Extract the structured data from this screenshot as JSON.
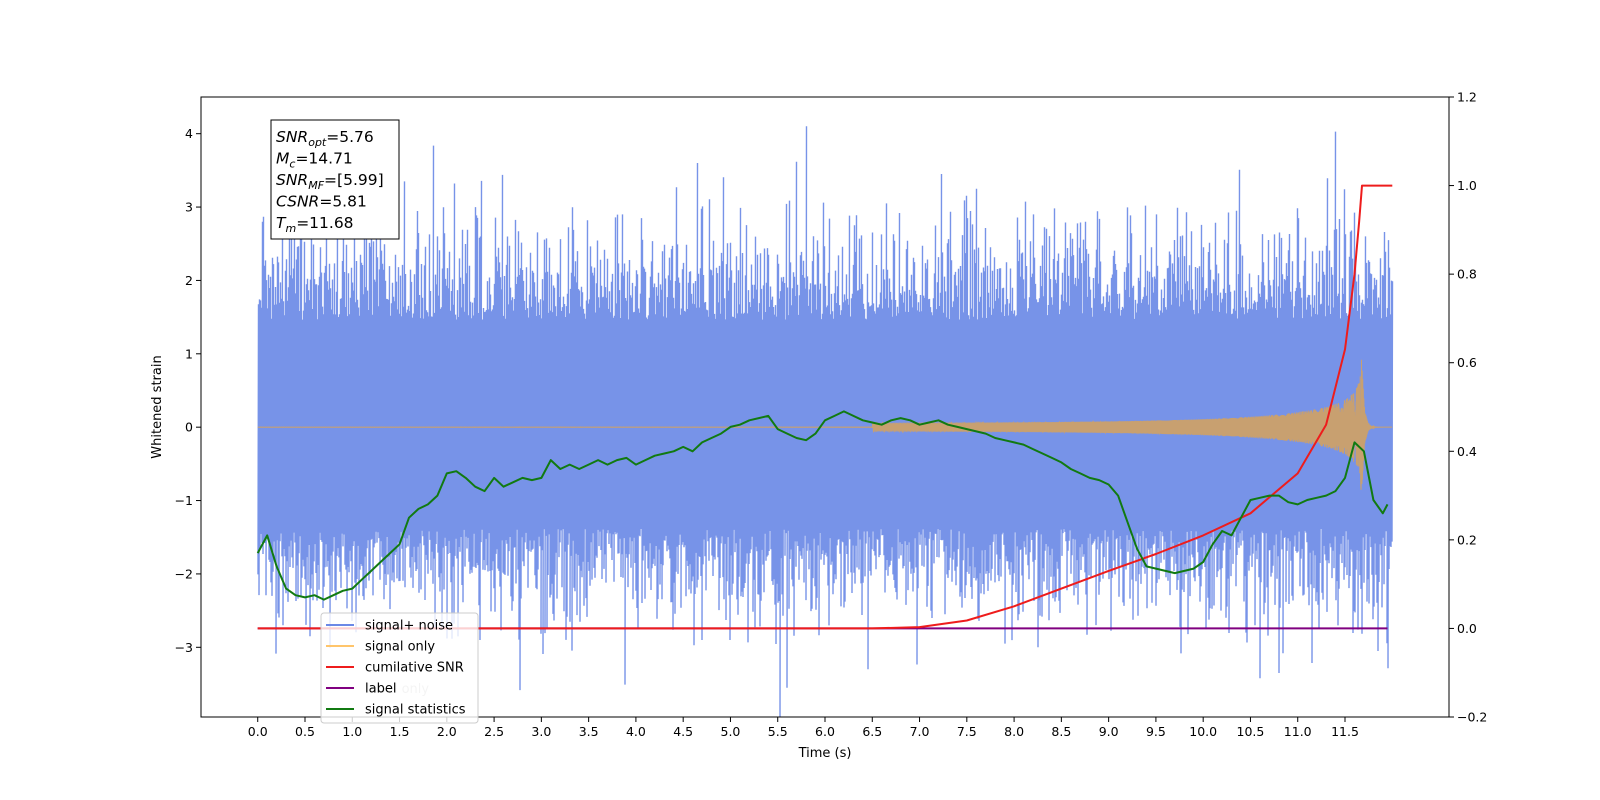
{
  "chart_data": {
    "type": "line",
    "xlabel": "Time (s)",
    "ylabel": "Whitened strain",
    "xlim": [
      -0.6,
      12.6
    ],
    "ylim": [
      -3.95,
      4.5
    ],
    "y2lim": [
      -0.2,
      1.2
    ],
    "x_ticks": [
      0.0,
      0.5,
      1.0,
      1.5,
      2.0,
      2.5,
      3.0,
      3.5,
      4.0,
      4.5,
      5.0,
      5.5,
      6.0,
      6.5,
      7.0,
      7.5,
      8.0,
      8.5,
      9.0,
      9.5,
      10.0,
      10.5,
      11.0,
      11.5
    ],
    "x_tick_labels": [
      "0.0",
      "0.5",
      "1.0",
      "1.5",
      "2.0",
      "2.5",
      "3.0",
      "3.5",
      "4.0",
      "4.5",
      "5.0",
      "5.5",
      "6.0",
      "6.5",
      "7.0",
      "7.5",
      "8.0",
      "8.5",
      "9.0",
      "9.5",
      "10.0",
      "10.5",
      "11.0",
      "11.5"
    ],
    "y_ticks": [
      -3,
      -2,
      -1,
      0,
      1,
      2,
      3,
      4
    ],
    "y_tick_labels": [
      "−3",
      "−2",
      "−1",
      "0",
      "1",
      "2",
      "3",
      "4"
    ],
    "y2_ticks": [
      -0.2,
      0.0,
      0.2,
      0.4,
      0.6,
      0.8,
      1.0,
      1.2
    ],
    "y2_tick_labels": [
      "−0.2",
      "0.0",
      "0.2",
      "0.4",
      "0.6",
      "0.8",
      "1.0",
      "1.2"
    ],
    "annotation": [
      {
        "base": "SNR",
        "sub": "opt",
        "value": "=5.76"
      },
      {
        "base": "M",
        "sub": "c",
        "value": "=14.71"
      },
      {
        "base": "SNR",
        "sub": "MF",
        "value": "=[5.99]"
      },
      {
        "base": "CSNR",
        "sub": "",
        "value": "=5.81"
      },
      {
        "base": "T",
        "sub": "m",
        "value": "=11.68"
      }
    ],
    "legend": {
      "location": "lower left",
      "entries": [
        {
          "label": "signal+ noise",
          "color": "#6b89e6"
        },
        {
          "label": "signal only",
          "color": "#ffc56b"
        },
        {
          "label": "cumilative SNR",
          "color": "#ee1c1c"
        },
        {
          "label": "label",
          "color": "#800080"
        },
        {
          "label": "signal statistics",
          "color": "#117a11"
        }
      ],
      "hidden_label": "label only"
    },
    "series": [
      {
        "name": "signal+ noise",
        "axis": "left",
        "color": "#7793e8",
        "x_range": [
          0.0,
          12.0
        ],
        "band": [
          -1.85,
          1.95
        ],
        "spikes": [
          {
            "x": 0.05,
            "y": 2.8
          },
          {
            "x": 0.15,
            "y": -2.3
          },
          {
            "x": 0.35,
            "y": 2.6
          },
          {
            "x": 0.55,
            "y": -2.85
          },
          {
            "x": 0.9,
            "y": 2.9
          },
          {
            "x": 1.15,
            "y": 3.1
          },
          {
            "x": 1.25,
            "y": 3.1
          },
          {
            "x": 1.55,
            "y": 3.35
          },
          {
            "x": 1.9,
            "y": 2.6
          },
          {
            "x": 2.3,
            "y": 3.0
          },
          {
            "x": 2.35,
            "y": -2.9
          },
          {
            "x": 3.85,
            "y": 2.9
          },
          {
            "x": 4.05,
            "y": 2.85
          },
          {
            "x": 4.65,
            "y": 3.6
          },
          {
            "x": 4.7,
            "y": -2.9
          },
          {
            "x": 5.0,
            "y": -2.9
          },
          {
            "x": 5.6,
            "y": -3.55
          },
          {
            "x": 5.8,
            "y": 4.1
          },
          {
            "x": 6.45,
            "y": -3.3
          },
          {
            "x": 6.65,
            "y": 3.05
          },
          {
            "x": 7.5,
            "y": 2.85
          },
          {
            "x": 7.9,
            "y": -2.95
          },
          {
            "x": 8.2,
            "y": 2.9
          },
          {
            "x": 8.25,
            "y": -3.0
          },
          {
            "x": 8.75,
            "y": 2.8
          },
          {
            "x": 9.5,
            "y": 2.9
          },
          {
            "x": 10.35,
            "y": 2.95
          },
          {
            "x": 10.45,
            "y": -2.8
          },
          {
            "x": 10.8,
            "y": -3.35
          },
          {
            "x": 11.0,
            "y": 2.85
          },
          {
            "x": 11.4,
            "y": 2.7
          },
          {
            "x": 11.85,
            "y": -3.05
          },
          {
            "x": 11.95,
            "y": 2.55
          }
        ]
      },
      {
        "name": "signal only",
        "axis": "left",
        "color": "#c8a070",
        "x_range": [
          0.0,
          12.0
        ],
        "peak_x": 11.68,
        "peak_amplitude": 0.92
      },
      {
        "name": "cumilative SNR",
        "axis": "right",
        "color": "#ee1c1c",
        "x": [
          0.0,
          6.5,
          7.0,
          7.5,
          8.0,
          8.5,
          9.0,
          9.5,
          10.0,
          10.5,
          11.0,
          11.3,
          11.5,
          11.6,
          11.65,
          11.68,
          12.0
        ],
        "y": [
          0.0,
          0.0,
          0.003,
          0.018,
          0.05,
          0.09,
          0.13,
          0.168,
          0.21,
          0.26,
          0.35,
          0.46,
          0.63,
          0.8,
          0.92,
          1.0,
          1.0
        ]
      },
      {
        "name": "label",
        "axis": "right",
        "color": "#800080",
        "x": [
          0.0,
          11.95
        ],
        "y": [
          0.0,
          0.0
        ]
      },
      {
        "name": "signal statistics",
        "axis": "right",
        "color": "#117a11",
        "x": [
          0.0,
          0.1,
          0.2,
          0.3,
          0.4,
          0.5,
          0.6,
          0.7,
          0.8,
          0.9,
          1.0,
          1.1,
          1.2,
          1.3,
          1.4,
          1.5,
          1.6,
          1.7,
          1.8,
          1.9,
          2.0,
          2.1,
          2.2,
          2.3,
          2.4,
          2.5,
          2.6,
          2.7,
          2.8,
          2.9,
          3.0,
          3.1,
          3.2,
          3.3,
          3.4,
          3.5,
          3.6,
          3.7,
          3.8,
          3.9,
          4.0,
          4.1,
          4.2,
          4.3,
          4.4,
          4.5,
          4.6,
          4.7,
          4.8,
          4.9,
          5.0,
          5.1,
          5.2,
          5.3,
          5.4,
          5.5,
          5.6,
          5.7,
          5.8,
          5.9,
          6.0,
          6.1,
          6.2,
          6.3,
          6.4,
          6.5,
          6.6,
          6.7,
          6.8,
          6.9,
          7.0,
          7.1,
          7.2,
          7.3,
          7.4,
          7.5,
          7.6,
          7.7,
          7.8,
          7.9,
          8.0,
          8.1,
          8.2,
          8.3,
          8.4,
          8.5,
          8.6,
          8.7,
          8.8,
          8.9,
          9.0,
          9.1,
          9.2,
          9.3,
          9.4,
          9.5,
          9.6,
          9.7,
          9.8,
          9.9,
          10.0,
          10.1,
          10.2,
          10.3,
          10.4,
          10.5,
          10.6,
          10.7,
          10.8,
          10.9,
          11.0,
          11.1,
          11.2,
          11.3,
          11.4,
          11.5,
          11.6,
          11.7,
          11.8,
          11.9,
          11.95
        ],
        "y": [
          0.17,
          0.21,
          0.14,
          0.09,
          0.075,
          0.07,
          0.075,
          0.065,
          0.075,
          0.085,
          0.09,
          0.11,
          0.13,
          0.15,
          0.17,
          0.19,
          0.25,
          0.27,
          0.28,
          0.3,
          0.35,
          0.355,
          0.34,
          0.32,
          0.31,
          0.34,
          0.32,
          0.33,
          0.34,
          0.335,
          0.34,
          0.38,
          0.36,
          0.37,
          0.36,
          0.37,
          0.38,
          0.37,
          0.38,
          0.385,
          0.37,
          0.38,
          0.39,
          0.395,
          0.4,
          0.41,
          0.4,
          0.42,
          0.43,
          0.44,
          0.455,
          0.46,
          0.47,
          0.475,
          0.48,
          0.45,
          0.44,
          0.43,
          0.425,
          0.44,
          0.47,
          0.48,
          0.49,
          0.48,
          0.47,
          0.465,
          0.46,
          0.47,
          0.475,
          0.47,
          0.46,
          0.465,
          0.47,
          0.46,
          0.455,
          0.45,
          0.445,
          0.44,
          0.43,
          0.425,
          0.42,
          0.415,
          0.405,
          0.395,
          0.385,
          0.375,
          0.36,
          0.35,
          0.34,
          0.335,
          0.325,
          0.3,
          0.24,
          0.18,
          0.14,
          0.135,
          0.13,
          0.125,
          0.13,
          0.135,
          0.15,
          0.19,
          0.22,
          0.21,
          0.25,
          0.29,
          0.295,
          0.3,
          0.3,
          0.285,
          0.28,
          0.29,
          0.295,
          0.3,
          0.31,
          0.34,
          0.42,
          0.4,
          0.29,
          0.26,
          0.28
        ]
      }
    ]
  }
}
